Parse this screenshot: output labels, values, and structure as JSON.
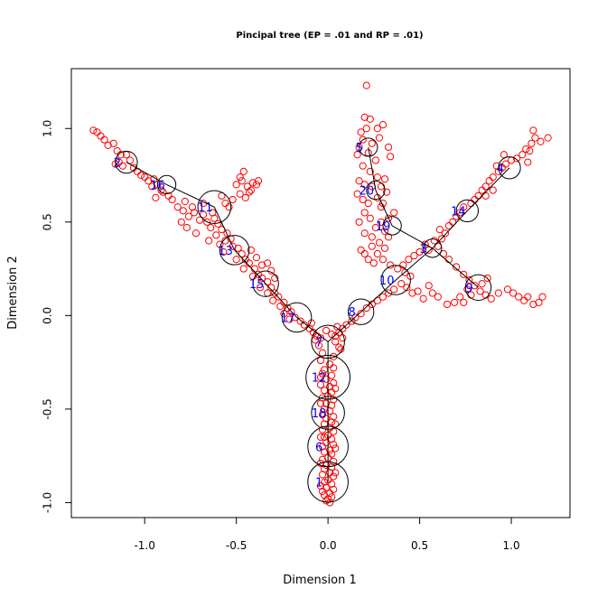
{
  "chart_data": {
    "type": "scatter",
    "title": "Pincipal tree (EP = .01 and RP = .01)",
    "xlabel": "Dimension 1",
    "ylabel": "Dimension 2",
    "xlim": [
      -1.4,
      1.32
    ],
    "ylim": [
      -1.08,
      1.32
    ],
    "x_ticks": [
      -1.0,
      -0.5,
      0.0,
      0.5,
      1.0
    ],
    "x_tick_labels": [
      "-1.0",
      "-0.5",
      "0.0",
      "0.5",
      "1.0"
    ],
    "y_ticks": [
      -1.0,
      -0.5,
      0.0,
      0.5,
      1.0
    ],
    "y_tick_labels": [
      "-1.0",
      "-0.5",
      "0.0",
      "0.5",
      "1.0"
    ],
    "grid": false,
    "colors": {
      "points": "#ff0000",
      "nodes": "#000000",
      "labels": "#0000ff",
      "edges": "#000000"
    },
    "nodes": [
      {
        "id": "1",
        "x": 0.0,
        "y": -0.89,
        "r": 0.11
      },
      {
        "id": "2",
        "x": -1.1,
        "y": 0.82,
        "r": 0.06
      },
      {
        "id": "3",
        "x": 0.57,
        "y": 0.36,
        "r": 0.05
      },
      {
        "id": "4",
        "x": 0.99,
        "y": 0.79,
        "r": 0.06
      },
      {
        "id": "5",
        "x": 0.22,
        "y": 0.9,
        "r": 0.05
      },
      {
        "id": "6",
        "x": 0.0,
        "y": -0.7,
        "r": 0.11
      },
      {
        "id": "7",
        "x": 0.0,
        "y": -0.14,
        "r": 0.09
      },
      {
        "id": "8",
        "x": 0.18,
        "y": 0.02,
        "r": 0.07
      },
      {
        "id": "9",
        "x": 0.82,
        "y": 0.15,
        "r": 0.07
      },
      {
        "id": "10",
        "x": 0.37,
        "y": 0.19,
        "r": 0.08
      },
      {
        "id": "11",
        "x": -0.62,
        "y": 0.58,
        "r": 0.09
      },
      {
        "id": "12",
        "x": 0.0,
        "y": -0.33,
        "r": 0.12
      },
      {
        "id": "13",
        "x": -0.51,
        "y": 0.35,
        "r": 0.08
      },
      {
        "id": "14",
        "x": 0.76,
        "y": 0.56,
        "r": 0.06
      },
      {
        "id": "15",
        "x": -0.34,
        "y": 0.17,
        "r": 0.07
      },
      {
        "id": "16",
        "x": -0.88,
        "y": 0.7,
        "r": 0.05
      },
      {
        "id": "17",
        "x": -0.17,
        "y": -0.01,
        "r": 0.08
      },
      {
        "id": "18",
        "x": 0.0,
        "y": -0.52,
        "r": 0.09
      },
      {
        "id": "19",
        "x": 0.35,
        "y": 0.48,
        "r": 0.05
      },
      {
        "id": "20",
        "x": 0.26,
        "y": 0.67,
        "r": 0.05
      }
    ],
    "edges": [
      [
        "1",
        "6"
      ],
      [
        "6",
        "18"
      ],
      [
        "18",
        "12"
      ],
      [
        "12",
        "7"
      ],
      [
        "7",
        "17"
      ],
      [
        "17",
        "15"
      ],
      [
        "15",
        "13"
      ],
      [
        "13",
        "11"
      ],
      [
        "11",
        "16"
      ],
      [
        "16",
        "2"
      ],
      [
        "7",
        "8"
      ],
      [
        "8",
        "10"
      ],
      [
        "10",
        "3"
      ],
      [
        "3",
        "14"
      ],
      [
        "14",
        "4"
      ],
      [
        "3",
        "9"
      ],
      [
        "3",
        "19"
      ],
      [
        "19",
        "20"
      ],
      [
        "20",
        "5"
      ]
    ],
    "points": [
      [
        -1.28,
        0.99
      ],
      [
        -1.26,
        0.98
      ],
      [
        -1.24,
        0.96
      ],
      [
        -1.22,
        0.94
      ],
      [
        -1.2,
        0.91
      ],
      [
        -1.17,
        0.92
      ],
      [
        -1.15,
        0.88
      ],
      [
        -1.13,
        0.86
      ],
      [
        -1.1,
        0.86
      ],
      [
        -1.08,
        0.83
      ],
      [
        -1.12,
        0.8
      ],
      [
        -1.14,
        0.82
      ],
      [
        -1.16,
        0.81
      ],
      [
        -1.06,
        0.79
      ],
      [
        -1.04,
        0.77
      ],
      [
        -1.02,
        0.75
      ],
      [
        -1.0,
        0.74
      ],
      [
        -0.98,
        0.72
      ],
      [
        -0.95,
        0.73
      ],
      [
        -0.93,
        0.7
      ],
      [
        -0.96,
        0.69
      ],
      [
        -0.91,
        0.67
      ],
      [
        -0.94,
        0.63
      ],
      [
        -0.9,
        0.66
      ],
      [
        -0.87,
        0.64
      ],
      [
        -0.85,
        0.62
      ],
      [
        -0.82,
        0.58
      ],
      [
        -0.79,
        0.56
      ],
      [
        -0.76,
        0.53
      ],
      [
        -0.73,
        0.55
      ],
      [
        -0.7,
        0.51
      ],
      [
        -0.68,
        0.54
      ],
      [
        -0.66,
        0.5
      ],
      [
        -0.64,
        0.47
      ],
      [
        -0.62,
        0.52
      ],
      [
        -0.6,
        0.49
      ],
      [
        -0.58,
        0.46
      ],
      [
        -0.55,
        0.44
      ],
      [
        -0.53,
        0.41
      ],
      [
        -0.56,
        0.4
      ],
      [
        -0.52,
        0.37
      ],
      [
        -0.49,
        0.36
      ],
      [
        -0.47,
        0.33
      ],
      [
        -0.45,
        0.3
      ],
      [
        -0.43,
        0.28
      ],
      [
        -0.4,
        0.25
      ],
      [
        -0.38,
        0.22
      ],
      [
        -0.36,
        0.2
      ],
      [
        -0.33,
        0.18
      ],
      [
        -0.31,
        0.15
      ],
      [
        -0.29,
        0.12
      ],
      [
        -0.27,
        0.1
      ],
      [
        -0.24,
        0.07
      ],
      [
        -0.22,
        0.04
      ],
      [
        -0.2,
        0.02
      ],
      [
        -0.18,
        -0.01
      ],
      [
        -0.15,
        -0.03
      ],
      [
        -0.13,
        -0.05
      ],
      [
        -0.1,
        -0.07
      ],
      [
        -0.08,
        -0.09
      ],
      [
        -0.06,
        -0.11
      ],
      [
        -0.04,
        -0.12
      ],
      [
        -0.78,
        0.61
      ],
      [
        -0.74,
        0.58
      ],
      [
        -0.8,
        0.5
      ],
      [
        -0.77,
        0.47
      ],
      [
        -0.72,
        0.44
      ],
      [
        -0.65,
        0.4
      ],
      [
        -0.61,
        0.43
      ],
      [
        -0.59,
        0.38
      ],
      [
        -0.57,
        0.34
      ],
      [
        -0.5,
        0.3
      ],
      [
        -0.46,
        0.25
      ],
      [
        -0.41,
        0.21
      ],
      [
        -0.37,
        0.15
      ],
      [
        -0.33,
        0.12
      ],
      [
        -0.3,
        0.08
      ],
      [
        -0.26,
        0.05
      ],
      [
        -0.24,
        0.01
      ],
      [
        -0.21,
        -0.02
      ],
      [
        -0.5,
        0.7
      ],
      [
        -0.48,
        0.74
      ],
      [
        -0.46,
        0.77
      ],
      [
        -0.47,
        0.72
      ],
      [
        -0.44,
        0.69
      ],
      [
        -0.43,
        0.66
      ],
      [
        -0.41,
        0.71
      ],
      [
        -0.42,
        0.67
      ],
      [
        -0.39,
        0.7
      ],
      [
        -0.38,
        0.72
      ],
      [
        -0.45,
        0.63
      ],
      [
        -0.48,
        0.65
      ],
      [
        -0.52,
        0.62
      ],
      [
        -0.54,
        0.58
      ],
      [
        -0.56,
        0.6
      ],
      [
        -0.58,
        0.64
      ],
      [
        -0.63,
        0.55
      ],
      [
        -0.68,
        0.6
      ],
      [
        -0.33,
        0.28
      ],
      [
        -0.31,
        0.24
      ],
      [
        -0.29,
        0.2
      ],
      [
        -0.36,
        0.27
      ],
      [
        -0.39,
        0.31
      ],
      [
        -0.42,
        0.35
      ],
      [
        0.21,
        1.23
      ],
      [
        0.2,
        1.06
      ],
      [
        0.23,
        1.05
      ],
      [
        0.21,
        1.0
      ],
      [
        0.18,
        0.98
      ],
      [
        0.27,
        1.0
      ],
      [
        0.19,
        0.94
      ],
      [
        0.17,
        0.9
      ],
      [
        0.24,
        0.92
      ],
      [
        0.28,
        0.95
      ],
      [
        0.3,
        1.02
      ],
      [
        0.22,
        0.87
      ],
      [
        0.16,
        0.86
      ],
      [
        0.26,
        0.83
      ],
      [
        0.33,
        0.9
      ],
      [
        0.34,
        0.85
      ],
      [
        0.19,
        0.8
      ],
      [
        0.23,
        0.77
      ],
      [
        0.27,
        0.74
      ],
      [
        0.17,
        0.72
      ],
      [
        0.2,
        0.7
      ],
      [
        0.24,
        0.69
      ],
      [
        0.16,
        0.65
      ],
      [
        0.19,
        0.62
      ],
      [
        0.22,
        0.6
      ],
      [
        0.27,
        0.63
      ],
      [
        0.29,
        0.58
      ],
      [
        0.2,
        0.55
      ],
      [
        0.17,
        0.5
      ],
      [
        0.23,
        0.52
      ],
      [
        0.26,
        0.47
      ],
      [
        0.29,
        0.5
      ],
      [
        0.31,
        0.45
      ],
      [
        0.33,
        0.42
      ],
      [
        0.2,
        0.44
      ],
      [
        0.24,
        0.42
      ],
      [
        0.28,
        0.39
      ],
      [
        0.31,
        0.36
      ],
      [
        0.18,
        0.35
      ],
      [
        0.2,
        0.33
      ],
      [
        0.22,
        0.3
      ],
      [
        0.25,
        0.28
      ],
      [
        0.36,
        0.55
      ],
      [
        0.33,
        0.52
      ],
      [
        0.29,
        0.69
      ],
      [
        0.32,
        0.66
      ],
      [
        0.3,
        0.6
      ],
      [
        0.31,
        0.73
      ],
      [
        0.24,
        0.37
      ],
      [
        0.27,
        0.33
      ],
      [
        0.3,
        0.3
      ],
      [
        0.34,
        0.27
      ],
      [
        0.38,
        0.25
      ],
      [
        0.42,
        0.23
      ],
      [
        0.45,
        0.21
      ],
      [
        0.4,
        0.17
      ],
      [
        0.36,
        0.14
      ],
      [
        0.33,
        0.12
      ],
      [
        0.3,
        0.1
      ],
      [
        0.27,
        0.08
      ],
      [
        0.24,
        0.06
      ],
      [
        0.21,
        0.04
      ],
      [
        0.18,
        0.01
      ],
      [
        0.15,
        -0.01
      ],
      [
        0.13,
        -0.03
      ],
      [
        0.1,
        -0.05
      ],
      [
        0.08,
        -0.07
      ],
      [
        0.06,
        -0.09
      ],
      [
        0.04,
        -0.11
      ],
      [
        0.43,
        0.15
      ],
      [
        0.46,
        0.12
      ],
      [
        0.49,
        0.13
      ],
      [
        0.52,
        0.09
      ],
      [
        0.41,
        0.27
      ],
      [
        0.44,
        0.3
      ],
      [
        0.47,
        0.32
      ],
      [
        0.5,
        0.34
      ],
      [
        0.53,
        0.38
      ],
      [
        0.55,
        0.35
      ],
      [
        0.58,
        0.4
      ],
      [
        0.6,
        0.37
      ],
      [
        0.62,
        0.41
      ],
      [
        0.64,
        0.44
      ],
      [
        0.61,
        0.46
      ],
      [
        0.66,
        0.48
      ],
      [
        0.68,
        0.5
      ],
      [
        0.7,
        0.53
      ],
      [
        0.72,
        0.55
      ],
      [
        0.74,
        0.58
      ],
      [
        0.78,
        0.6
      ],
      [
        0.8,
        0.62
      ],
      [
        0.82,
        0.64
      ],
      [
        0.84,
        0.67
      ],
      [
        0.86,
        0.69
      ],
      [
        0.88,
        0.72
      ],
      [
        0.9,
        0.74
      ],
      [
        0.93,
        0.77
      ],
      [
        0.95,
        0.79
      ],
      [
        0.97,
        0.81
      ],
      [
        1.0,
        0.83
      ],
      [
        0.92,
        0.8
      ],
      [
        0.96,
        0.86
      ],
      [
        1.03,
        0.84
      ],
      [
        1.06,
        0.86
      ],
      [
        1.08,
        0.89
      ],
      [
        1.11,
        0.92
      ],
      [
        1.13,
        0.95
      ],
      [
        1.12,
        0.99
      ],
      [
        1.16,
        0.93
      ],
      [
        1.2,
        0.95
      ],
      [
        1.1,
        0.88
      ],
      [
        1.09,
        0.82
      ],
      [
        0.9,
        0.67
      ],
      [
        0.86,
        0.64
      ],
      [
        0.63,
        0.33
      ],
      [
        0.66,
        0.3
      ],
      [
        0.7,
        0.26
      ],
      [
        0.74,
        0.22
      ],
      [
        0.77,
        0.19
      ],
      [
        0.8,
        0.16
      ],
      [
        0.83,
        0.13
      ],
      [
        0.86,
        0.11
      ],
      [
        0.89,
        0.09
      ],
      [
        0.76,
        0.14
      ],
      [
        0.72,
        0.1
      ],
      [
        0.69,
        0.07
      ],
      [
        0.65,
        0.06
      ],
      [
        0.6,
        0.1
      ],
      [
        0.57,
        0.12
      ],
      [
        0.55,
        0.16
      ],
      [
        0.93,
        0.12
      ],
      [
        0.98,
        0.14
      ],
      [
        1.01,
        0.12
      ],
      [
        1.04,
        0.1
      ],
      [
        1.07,
        0.08
      ],
      [
        1.09,
        0.1
      ],
      [
        1.12,
        0.06
      ],
      [
        1.15,
        0.07
      ],
      [
        1.17,
        0.1
      ],
      [
        0.84,
        0.17
      ],
      [
        0.87,
        0.2
      ],
      [
        0.74,
        0.07
      ],
      [
        0.78,
        0.11
      ],
      [
        -0.05,
        -0.16
      ],
      [
        0.04,
        -0.14
      ],
      [
        -0.03,
        -0.2
      ],
      [
        0.03,
        -0.22
      ],
      [
        0.06,
        -0.17
      ],
      [
        -0.07,
        -0.13
      ],
      [
        0.08,
        -0.12
      ],
      [
        0.02,
        -0.1
      ],
      [
        -0.01,
        -0.08
      ],
      [
        0.05,
        -0.06
      ],
      [
        -0.09,
        -0.04
      ],
      [
        0.07,
        -0.18
      ],
      [
        -0.04,
        -0.24
      ],
      [
        0.01,
        -0.26
      ],
      [
        0.03,
        -0.28
      ],
      [
        -0.02,
        -0.29
      ],
      [
        -0.03,
        -0.31
      ],
      [
        0.02,
        -0.32
      ],
      [
        -0.01,
        -0.34
      ],
      [
        0.03,
        -0.36
      ],
      [
        -0.04,
        -0.37
      ],
      [
        0.01,
        -0.38
      ],
      [
        -0.02,
        -0.4
      ],
      [
        0.02,
        -0.41
      ],
      [
        0.0,
        -0.43
      ],
      [
        -0.03,
        -0.44
      ],
      [
        0.03,
        -0.45
      ],
      [
        -0.01,
        -0.47
      ],
      [
        0.02,
        -0.48
      ],
      [
        -0.02,
        -0.5
      ],
      [
        0.01,
        -0.51
      ],
      [
        -0.03,
        -0.53
      ],
      [
        0.03,
        -0.54
      ],
      [
        -0.01,
        -0.55
      ],
      [
        0.02,
        -0.57
      ],
      [
        -0.02,
        -0.58
      ],
      [
        0.01,
        -0.6
      ],
      [
        -0.03,
        -0.61
      ],
      [
        0.03,
        -0.62
      ],
      [
        0.0,
        -0.64
      ],
      [
        -0.02,
        -0.65
      ],
      [
        0.02,
        -0.66
      ],
      [
        -0.01,
        -0.68
      ],
      [
        0.03,
        -0.69
      ],
      [
        -0.03,
        -0.7
      ],
      [
        0.01,
        -0.72
      ],
      [
        -0.02,
        -0.73
      ],
      [
        0.02,
        -0.74
      ],
      [
        0.0,
        -0.76
      ],
      [
        -0.03,
        -0.77
      ],
      [
        0.03,
        -0.78
      ],
      [
        -0.01,
        -0.8
      ],
      [
        0.02,
        -0.81
      ],
      [
        -0.02,
        -0.82
      ],
      [
        0.01,
        -0.84
      ],
      [
        -0.03,
        -0.85
      ],
      [
        0.03,
        -0.86
      ],
      [
        0.0,
        -0.88
      ],
      [
        -0.02,
        -0.89
      ],
      [
        0.02,
        -0.9
      ],
      [
        -0.01,
        -0.92
      ],
      [
        0.03,
        -0.93
      ],
      [
        -0.03,
        -0.94
      ],
      [
        0.01,
        -0.95
      ],
      [
        -0.02,
        -0.96
      ],
      [
        0.02,
        -0.97
      ],
      [
        0.0,
        -0.98
      ],
      [
        -0.01,
        -0.99
      ],
      [
        0.01,
        -1.0
      ],
      [
        -0.04,
        -0.65
      ],
      [
        0.04,
        -0.71
      ],
      [
        -0.04,
        -0.79
      ],
      [
        0.04,
        -0.84
      ],
      [
        -0.04,
        -0.91
      ],
      [
        0.04,
        -0.58
      ],
      [
        -0.04,
        -0.47
      ],
      [
        0.04,
        -0.39
      ],
      [
        -0.04,
        -0.33
      ]
    ]
  }
}
